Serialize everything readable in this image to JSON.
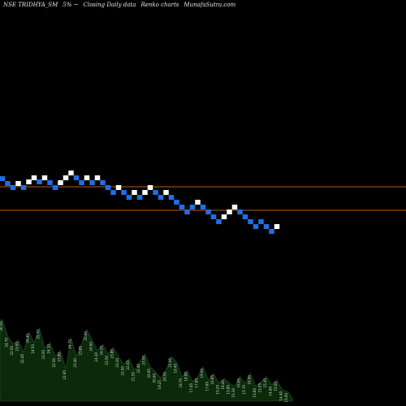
{
  "header": {
    "symbol": "NSE TRIDHYA_SM",
    "change": "5% ~",
    "series": "Closing Daily data",
    "chart_kind": "Renko charts",
    "site": "MunafaSutra.com"
  },
  "colors": {
    "background": "#000000",
    "up_brick": "#ffffff",
    "down_brick": "#1e6fe6",
    "level_line": "#b85a1e",
    "volume_fill": "#0a2a0a",
    "volume_edge": "#2a5a2a"
  },
  "chart_data": {
    "type": "renko",
    "levels": [
      230,
      259
    ],
    "bricks": [
      {
        "y": 220,
        "dir": "down"
      },
      {
        "y": 226,
        "dir": "down"
      },
      {
        "y": 231,
        "dir": "down"
      },
      {
        "y": 226,
        "dir": "up"
      },
      {
        "y": 231,
        "dir": "down"
      },
      {
        "y": 224,
        "dir": "up"
      },
      {
        "y": 219,
        "dir": "up"
      },
      {
        "y": 224,
        "dir": "down"
      },
      {
        "y": 219,
        "dir": "up"
      },
      {
        "y": 225,
        "dir": "down"
      },
      {
        "y": 231,
        "dir": "down"
      },
      {
        "y": 225,
        "dir": "up"
      },
      {
        "y": 219,
        "dir": "up"
      },
      {
        "y": 213,
        "dir": "up"
      },
      {
        "y": 219,
        "dir": "down"
      },
      {
        "y": 225,
        "dir": "down"
      },
      {
        "y": 219,
        "dir": "up"
      },
      {
        "y": 225,
        "dir": "down"
      },
      {
        "y": 219,
        "dir": "up"
      },
      {
        "y": 225,
        "dir": "down"
      },
      {
        "y": 231,
        "dir": "down"
      },
      {
        "y": 237,
        "dir": "down"
      },
      {
        "y": 231,
        "dir": "up"
      },
      {
        "y": 237,
        "dir": "down"
      },
      {
        "y": 243,
        "dir": "down"
      },
      {
        "y": 237,
        "dir": "up"
      },
      {
        "y": 243,
        "dir": "down"
      },
      {
        "y": 237,
        "dir": "up"
      },
      {
        "y": 231,
        "dir": "up"
      },
      {
        "y": 237,
        "dir": "down"
      },
      {
        "y": 243,
        "dir": "down"
      },
      {
        "y": 237,
        "dir": "up"
      },
      {
        "y": 243,
        "dir": "down"
      },
      {
        "y": 249,
        "dir": "down"
      },
      {
        "y": 255,
        "dir": "down"
      },
      {
        "y": 261,
        "dir": "down"
      },
      {
        "y": 255,
        "dir": "down"
      },
      {
        "y": 249,
        "dir": "up"
      },
      {
        "y": 255,
        "dir": "down"
      },
      {
        "y": 261,
        "dir": "down"
      },
      {
        "y": 267,
        "dir": "down"
      },
      {
        "y": 273,
        "dir": "down"
      },
      {
        "y": 267,
        "dir": "up"
      },
      {
        "y": 261,
        "dir": "up"
      },
      {
        "y": 255,
        "dir": "up"
      },
      {
        "y": 261,
        "dir": "down"
      },
      {
        "y": 267,
        "dir": "down"
      },
      {
        "y": 273,
        "dir": "down"
      },
      {
        "y": 279,
        "dir": "down"
      },
      {
        "y": 273,
        "dir": "down"
      },
      {
        "y": 279,
        "dir": "down"
      },
      {
        "y": 285,
        "dir": "down"
      },
      {
        "y": 279,
        "dir": "up"
      }
    ],
    "volume": [
      {
        "h": 100,
        "label": "26.50"
      },
      {
        "h": 80,
        "label": "24.70"
      },
      {
        "h": 70,
        "label": "22.50"
      },
      {
        "h": 75,
        "label": "23.95"
      },
      {
        "h": 60,
        "label": "22.45"
      },
      {
        "h": 85,
        "label": "24.45"
      },
      {
        "h": 72,
        "label": "24.50"
      },
      {
        "h": 90,
        "label": "25.70"
      },
      {
        "h": 65,
        "label": "23.50"
      },
      {
        "h": 72,
        "label": "24.10"
      },
      {
        "h": 55,
        "label": "22.50"
      },
      {
        "h": 62,
        "label": "23.80"
      },
      {
        "h": 40,
        "label": "22.95"
      },
      {
        "h": 78,
        "label": "24.70"
      },
      {
        "h": 55,
        "label": "23.40"
      },
      {
        "h": 70,
        "label": "23.85"
      },
      {
        "h": 88,
        "label": "25.00"
      },
      {
        "h": 75,
        "label": "24.60"
      },
      {
        "h": 62,
        "label": "24.30"
      },
      {
        "h": 70,
        "label": "24.20"
      },
      {
        "h": 58,
        "label": "23.50"
      },
      {
        "h": 66,
        "label": "23.80"
      },
      {
        "h": 55,
        "label": "23.30"
      },
      {
        "h": 45,
        "label": "22.50"
      },
      {
        "h": 52,
        "label": "22.45"
      },
      {
        "h": 38,
        "label": "21.55"
      },
      {
        "h": 48,
        "label": "22.40"
      },
      {
        "h": 58,
        "label": "23.00"
      },
      {
        "h": 42,
        "label": "20.95"
      },
      {
        "h": 36,
        "label": "20.00"
      },
      {
        "h": 28,
        "label": "19.25"
      },
      {
        "h": 38,
        "label": "20.55"
      },
      {
        "h": 55,
        "label": "21.05"
      },
      {
        "h": 48,
        "label": "19.45"
      },
      {
        "h": 30,
        "label": "18.70"
      },
      {
        "h": 38,
        "label": "18.80"
      },
      {
        "h": 24,
        "label": "17.45"
      },
      {
        "h": 30,
        "label": "17.85"
      },
      {
        "h": 42,
        "label": "19.00"
      },
      {
        "h": 26,
        "label": "17.60"
      },
      {
        "h": 34,
        "label": "16.85"
      },
      {
        "h": 22,
        "label": "15.20"
      },
      {
        "h": 28,
        "label": "16.40"
      },
      {
        "h": 22,
        "label": "15.85"
      },
      {
        "h": 18,
        "label": "15.30"
      },
      {
        "h": 30,
        "label": "16.65"
      },
      {
        "h": 22,
        "label": "15.70"
      },
      {
        "h": 34,
        "label": "16.90"
      },
      {
        "h": 18,
        "label": "15.60"
      },
      {
        "h": 24,
        "label": "15.05"
      },
      {
        "h": 30,
        "label": "15.45"
      },
      {
        "h": 20,
        "label": "14.60"
      },
      {
        "h": 26,
        "label": "15.00"
      },
      {
        "h": 14,
        "label": "14.40"
      },
      {
        "h": 12,
        "label": "15.00"
      }
    ]
  }
}
